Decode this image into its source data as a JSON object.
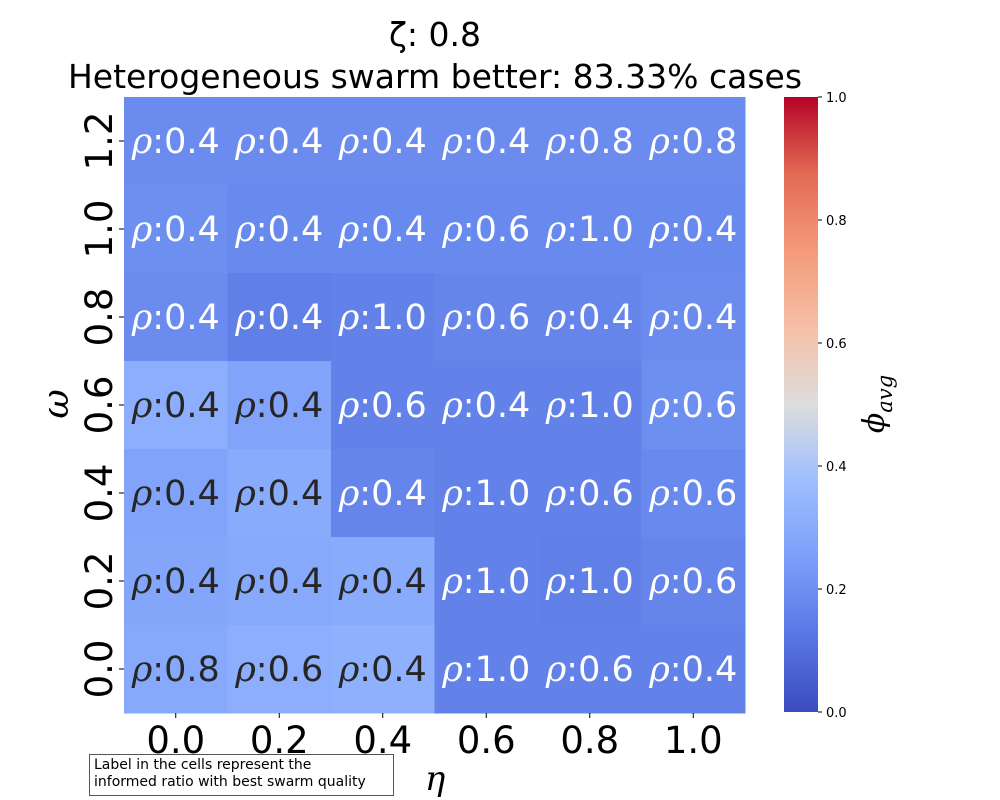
{
  "chart_data": {
    "type": "heatmap",
    "title_lines": [
      "ζ: 0.8",
      "Heterogeneous swarm better: 83.33% cases"
    ],
    "xlabel": "η",
    "ylabel": "ω",
    "x_ticks": [
      "0.0",
      "0.2",
      "0.4",
      "0.6",
      "0.8",
      "1.0"
    ],
    "y_ticks": [
      "1.2",
      "1.0",
      "0.8",
      "0.6",
      "0.4",
      "0.2",
      "0.0"
    ],
    "values": [
      [
        0.19,
        0.19,
        0.19,
        0.19,
        0.19,
        0.19
      ],
      [
        0.2,
        0.18,
        0.18,
        0.18,
        0.18,
        0.18
      ],
      [
        0.19,
        0.15,
        0.16,
        0.17,
        0.17,
        0.19
      ],
      [
        0.31,
        0.27,
        0.16,
        0.16,
        0.16,
        0.2
      ],
      [
        0.27,
        0.3,
        0.17,
        0.16,
        0.16,
        0.18
      ],
      [
        0.28,
        0.29,
        0.3,
        0.16,
        0.15,
        0.17
      ],
      [
        0.29,
        0.31,
        0.32,
        0.16,
        0.16,
        0.16
      ]
    ],
    "cell_labels": [
      [
        "ρ:0.4",
        "ρ:0.4",
        "ρ:0.4",
        "ρ:0.4",
        "ρ:0.8",
        "ρ:0.8"
      ],
      [
        "ρ:0.4",
        "ρ:0.4",
        "ρ:0.4",
        "ρ:0.6",
        "ρ:1.0",
        "ρ:0.4"
      ],
      [
        "ρ:0.4",
        "ρ:0.4",
        "ρ:1.0",
        "ρ:0.6",
        "ρ:0.4",
        "ρ:0.4"
      ],
      [
        "ρ:0.4",
        "ρ:0.4",
        "ρ:0.6",
        "ρ:0.4",
        "ρ:1.0",
        "ρ:0.6"
      ],
      [
        "ρ:0.4",
        "ρ:0.4",
        "ρ:0.4",
        "ρ:1.0",
        "ρ:0.6",
        "ρ:0.6"
      ],
      [
        "ρ:0.4",
        "ρ:0.4",
        "ρ:0.4",
        "ρ:1.0",
        "ρ:1.0",
        "ρ:0.6"
      ],
      [
        "ρ:0.8",
        "ρ:0.6",
        "ρ:0.4",
        "ρ:1.0",
        "ρ:0.6",
        "ρ:0.4"
      ]
    ],
    "colorbar": {
      "label": "ϕ",
      "label_subscript": "avg",
      "range": [
        0.0,
        1.0
      ],
      "ticks": [
        "0.0",
        "0.2",
        "0.4",
        "0.6",
        "0.8",
        "1.0"
      ],
      "colormap": "coolwarm"
    },
    "grid": false,
    "legend": "none"
  },
  "note": {
    "line1": "Label in the cells represent the",
    "line2": "informed ratio with best swarm quality"
  }
}
